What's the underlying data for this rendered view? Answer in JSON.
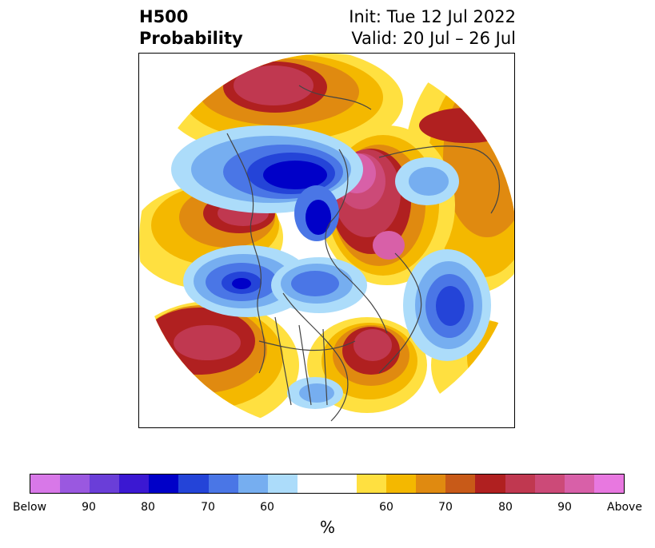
{
  "header": {
    "title_line1": "H500",
    "title_line2": "Probability",
    "init_text": "Init: Tue 12 Jul 2022",
    "valid_text": "Valid: 20 Jul – 26 Jul"
  },
  "colorbar": {
    "unit_label": "%",
    "colors": [
      "#d878e8",
      "#9a58e0",
      "#6a3ed8",
      "#3b18d2",
      "#0000c8",
      "#2444d8",
      "#4a76e6",
      "#76aef0",
      "#acdcfa",
      "#ffffff",
      "#ffffff",
      "#ffe040",
      "#f4b800",
      "#e08a10",
      "#c85a18",
      "#b02020",
      "#c03850",
      "#cc4a78",
      "#d860a8",
      "#e878e0"
    ],
    "tick_labels": [
      "Below",
      "90",
      "80",
      "70",
      "60",
      "60",
      "70",
      "80",
      "90",
      "Above"
    ]
  },
  "map": {
    "colors": {
      "yellow": "#ffe040",
      "gold": "#f4b800",
      "orange": "#e08a10",
      "dark_orange": "#c85a18",
      "red": "#b02020",
      "crimson": "#c03850",
      "rose": "#cc4a78",
      "pink": "#d860a8",
      "light_blue": "#acdcfa",
      "sky_blue": "#76aef0",
      "medium_blue": "#4a76e6",
      "blue": "#2444d8",
      "dark_blue": "#0000c8",
      "boundary": "#444444"
    }
  }
}
